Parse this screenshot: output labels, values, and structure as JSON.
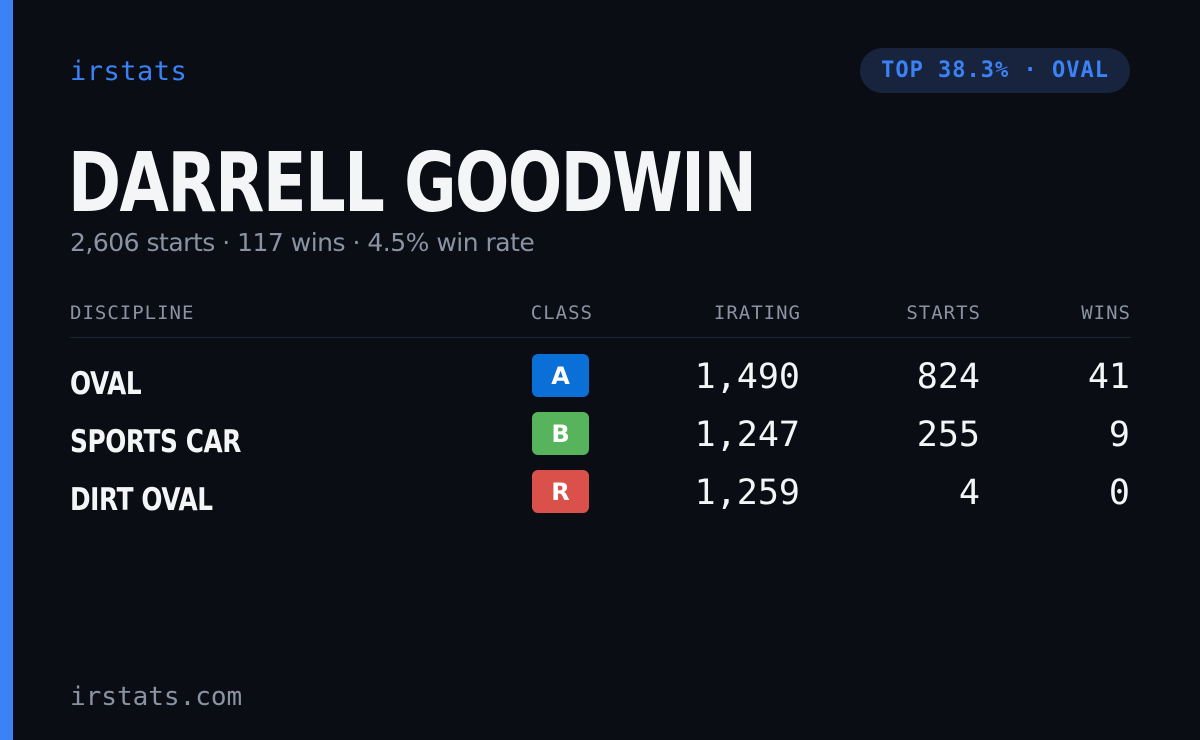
{
  "brand": "irstats",
  "rank_badge": "TOP 38.3% · OVAL",
  "driver": {
    "name": "DARRELL GOODWIN",
    "summary": "2,606 starts · 117 wins · 4.5% win rate"
  },
  "table": {
    "headers": {
      "discipline": "DISCIPLINE",
      "class": "CLASS",
      "irating": "IRATING",
      "starts": "STARTS",
      "wins": "WINS"
    },
    "rows": [
      {
        "discipline": "OVAL",
        "class": "A",
        "class_color": "#0b6fd8",
        "irating": "1,490",
        "starts": "824",
        "wins": "41"
      },
      {
        "discipline": "SPORTS CAR",
        "class": "B",
        "class_color": "#58b45c",
        "irating": "1,247",
        "starts": "255",
        "wins": "9"
      },
      {
        "discipline": "DIRT OVAL",
        "class": "R",
        "class_color": "#d9514a",
        "irating": "1,259",
        "starts": "4",
        "wins": "0"
      }
    ]
  },
  "footer": "irstats.com",
  "colors": {
    "accent": "#3b82f6",
    "background": "#0a0d14",
    "muted_text": "#8b93a3"
  }
}
